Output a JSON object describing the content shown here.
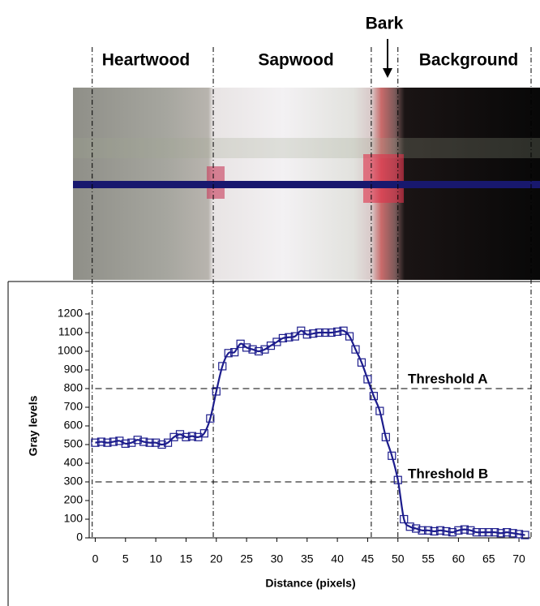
{
  "chart_data": {
    "type": "line",
    "x_label": "Distance (pixels)",
    "y_label": "Gray levels",
    "bark_label": "Bark",
    "region_labels": [
      "Heartwood",
      "Sapwood",
      "Background"
    ],
    "region_boundaries": [
      -0.5,
      19.5,
      45.6,
      50,
      72
    ],
    "thresholds": [
      {
        "label": "Threshold A",
        "value": 800
      },
      {
        "label": "Threshold B",
        "value": 300
      }
    ],
    "x": [
      0,
      1,
      2,
      3,
      4,
      5,
      6,
      7,
      8,
      9,
      10,
      11,
      12,
      13,
      14,
      15,
      16,
      17,
      18,
      19,
      20,
      21,
      22,
      23,
      24,
      25,
      26,
      27,
      28,
      29,
      30,
      31,
      32,
      33,
      34,
      35,
      36,
      37,
      38,
      39,
      40,
      41,
      42,
      43,
      44,
      45,
      46,
      47,
      48,
      49,
      50,
      51,
      52,
      53,
      54,
      55,
      56,
      57,
      58,
      59,
      60,
      61,
      62,
      63,
      64,
      65,
      66,
      67,
      68,
      69,
      70,
      71
    ],
    "series": [
      {
        "color": "#1c1c8c",
        "values": [
          510,
          515,
          510,
          515,
          520,
          505,
          510,
          525,
          515,
          510,
          510,
          500,
          510,
          540,
          555,
          540,
          545,
          540,
          560,
          640,
          785,
          920,
          990,
          995,
          1040,
          1020,
          1010,
          1000,
          1010,
          1030,
          1050,
          1070,
          1075,
          1080,
          1110,
          1090,
          1095,
          1100,
          1100,
          1100,
          1105,
          1110,
          1080,
          1010,
          940,
          850,
          760,
          680,
          540,
          440,
          310,
          100,
          60,
          50,
          40,
          40,
          35,
          40,
          35,
          30,
          40,
          45,
          40,
          30,
          30,
          30,
          30,
          25,
          30,
          25,
          20,
          15
        ]
      }
    ],
    "xlim": [
      -1,
      72
    ],
    "ylim": [
      0,
      1200
    ],
    "xticks": [
      0,
      5,
      10,
      15,
      20,
      25,
      30,
      35,
      40,
      45,
      50,
      55,
      60,
      65,
      70
    ],
    "yticks": [
      0,
      100,
      200,
      300,
      400,
      500,
      600,
      700,
      800,
      900,
      1000,
      1100,
      1200
    ]
  }
}
